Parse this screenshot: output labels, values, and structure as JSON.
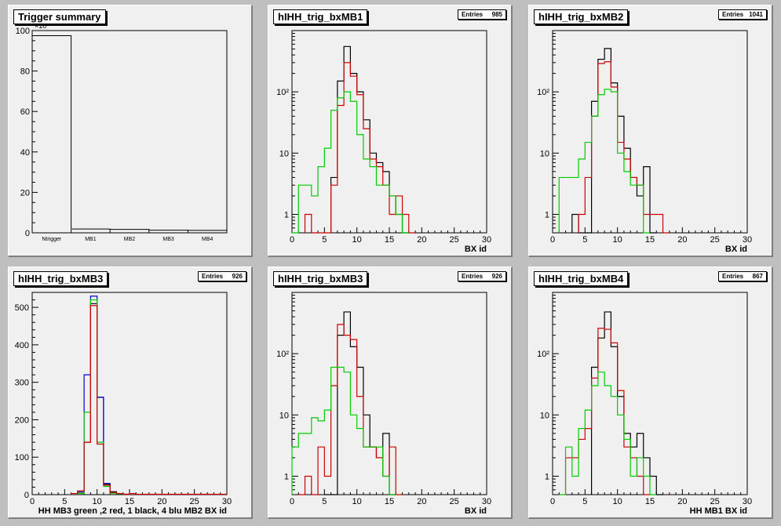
{
  "colors": {
    "black": "#000000",
    "red": "#cc0000",
    "green": "#00cc00",
    "blue": "#0000cc"
  },
  "chart_data": [
    {
      "type": "bar",
      "title": "Trigger summary",
      "exponent_label": "×10",
      "exponent_power": "3",
      "categories": [
        "Ntrigger",
        "MB1",
        "MB2",
        "MB3",
        "MB4"
      ],
      "values": [
        97.5,
        1.9,
        1.7,
        1.3,
        1.2
      ],
      "ylim": [
        0,
        100
      ],
      "yticks": [
        "0",
        "20",
        "40",
        "60",
        "80",
        "100"
      ],
      "ytick_values": [
        0,
        20,
        40,
        60,
        80,
        100
      ]
    },
    {
      "type": "line",
      "title": "hIHH_trig_bxMB1",
      "entries_label": "Entries",
      "entries": "985",
      "log": true,
      "xlabel": "BX id",
      "xlim": [
        0,
        30
      ],
      "xticks": [
        "0",
        "5",
        "10",
        "15",
        "20",
        "25",
        "30"
      ],
      "yticks": [
        "1",
        "10",
        "10²"
      ],
      "ytick_values": [
        1,
        10,
        100
      ],
      "series": [
        {
          "color": "black",
          "points": [
            [
              6,
              4
            ],
            [
              7,
              4
            ],
            [
              7,
              150
            ],
            [
              8,
              550
            ],
            [
              9,
              200
            ],
            [
              10,
              100
            ],
            [
              11,
              35
            ],
            [
              12,
              10
            ],
            [
              13,
              7
            ],
            [
              14,
              5
            ],
            [
              15,
              2
            ],
            [
              16,
              1
            ],
            [
              17,
              0.5
            ]
          ]
        },
        {
          "color": "red",
          "points": [
            [
              2,
              0.5
            ],
            [
              2,
              1
            ],
            [
              3,
              1
            ],
            [
              3,
              0.5
            ],
            [
              6,
              3
            ],
            [
              7,
              60
            ],
            [
              8,
              300
            ],
            [
              9,
              180
            ],
            [
              10,
              90
            ],
            [
              11,
              25
            ],
            [
              12,
              8
            ],
            [
              13,
              6
            ],
            [
              14,
              3
            ],
            [
              15,
              1
            ],
            [
              16,
              2
            ],
            [
              17,
              1
            ],
            [
              18,
              0.5
            ]
          ]
        },
        {
          "color": "green",
          "points": [
            [
              0,
              0.5
            ],
            [
              1,
              3
            ],
            [
              3,
              2
            ],
            [
              4,
              6
            ],
            [
              5,
              12
            ],
            [
              6,
              50
            ],
            [
              7,
              80
            ],
            [
              8,
              100
            ],
            [
              9,
              70
            ],
            [
              10,
              20
            ],
            [
              11,
              8
            ],
            [
              12,
              6
            ],
            [
              13,
              3
            ],
            [
              14,
              3
            ],
            [
              15,
              2
            ],
            [
              16,
              1
            ],
            [
              17,
              0.5
            ]
          ]
        }
      ]
    },
    {
      "type": "line",
      "title": "hIHH_trig_bxMB2",
      "entries_label": "Entries",
      "entries": "1041",
      "log": true,
      "xlabel": "BX id",
      "xlim": [
        0,
        30
      ],
      "xticks": [
        "0",
        "5",
        "10",
        "15",
        "20",
        "25",
        "30"
      ],
      "yticks": [
        "1",
        "10",
        "10²"
      ],
      "ytick_values": [
        1,
        10,
        100
      ],
      "series": [
        {
          "color": "black",
          "points": [
            [
              3,
              1
            ],
            [
              4,
              0.5
            ],
            [
              6,
              70
            ],
            [
              7,
              340
            ],
            [
              8,
              510
            ],
            [
              9,
              140
            ],
            [
              10,
              40
            ],
            [
              11,
              12
            ],
            [
              12,
              4
            ],
            [
              13,
              2
            ],
            [
              14,
              6
            ],
            [
              15,
              0.5
            ]
          ]
        },
        {
          "color": "red",
          "points": [
            [
              4,
              1
            ],
            [
              5,
              4
            ],
            [
              6,
              40
            ],
            [
              7,
              290
            ],
            [
              8,
              310
            ],
            [
              9,
              120
            ],
            [
              10,
              15
            ],
            [
              11,
              8
            ],
            [
              12,
              4
            ],
            [
              13,
              3
            ],
            [
              14,
              1
            ],
            [
              15,
              1
            ],
            [
              16,
              1
            ],
            [
              17,
              0.5
            ]
          ]
        },
        {
          "color": "green",
          "points": [
            [
              1,
              4
            ],
            [
              4,
              8
            ],
            [
              5,
              15
            ],
            [
              6,
              40
            ],
            [
              7,
              90
            ],
            [
              8,
              110
            ],
            [
              9,
              100
            ],
            [
              10,
              10
            ],
            [
              11,
              5
            ],
            [
              12,
              3
            ],
            [
              13,
              3
            ],
            [
              14,
              0.5
            ]
          ]
        }
      ]
    },
    {
      "type": "line",
      "title": "hIHH_trig_bxMB3",
      "entries_label": "Entries",
      "entries": "926",
      "log": false,
      "xlabel": "HH  MB3 green ,2 red, 1 black, 4 blu    MB2 BX id",
      "xlim": [
        0,
        30
      ],
      "xticks": [
        "0",
        "5",
        "10",
        "15",
        "20",
        "25",
        "30"
      ],
      "ylim": [
        0,
        540
      ],
      "yticks": [
        "0",
        "100",
        "200",
        "300",
        "400",
        "500"
      ],
      "ytick_values": [
        0,
        100,
        200,
        300,
        400,
        500
      ],
      "series": [
        {
          "color": "black",
          "points": [
            [
              7,
              4
            ],
            [
              8,
              140
            ],
            [
              9,
              510
            ],
            [
              10,
              260
            ],
            [
              11,
              28
            ],
            [
              12,
              8
            ],
            [
              13,
              3
            ],
            [
              14,
              1
            ]
          ]
        },
        {
          "color": "blue",
          "points": [
            [
              7,
              8
            ],
            [
              8,
              320
            ],
            [
              9,
              530
            ],
            [
              10,
              260
            ],
            [
              11,
              30
            ],
            [
              12,
              6
            ],
            [
              13,
              2
            ]
          ]
        },
        {
          "color": "green",
          "points": [
            [
              7,
              3
            ],
            [
              8,
              220
            ],
            [
              9,
              520
            ],
            [
              10,
              140
            ],
            [
              11,
              22
            ],
            [
              12,
              4
            ],
            [
              13,
              2
            ]
          ]
        },
        {
          "color": "red",
          "points": [
            [
              6,
              3
            ],
            [
              7,
              10
            ],
            [
              8,
              140
            ],
            [
              9,
              505
            ],
            [
              10,
              135
            ],
            [
              11,
              25
            ],
            [
              12,
              6
            ],
            [
              13,
              3
            ],
            [
              14,
              1
            ],
            [
              15,
              3
            ],
            [
              16,
              1
            ],
            [
              29,
              1
            ]
          ]
        }
      ]
    },
    {
      "type": "line",
      "title": "hIHH_trig_bxMB3",
      "entries_label": "Entries",
      "entries": "926",
      "log": true,
      "xlabel": "BX id",
      "xlim": [
        0,
        30
      ],
      "xticks": [
        "0",
        "5",
        "10",
        "15",
        "20",
        "25",
        "30"
      ],
      "yticks": [
        "1",
        "10",
        "10²"
      ],
      "ytick_values": [
        1,
        10,
        100
      ],
      "series": [
        {
          "color": "black",
          "points": [
            [
              5,
              0.5
            ],
            [
              6,
              0.5
            ],
            [
              7,
              200
            ],
            [
              8,
              480
            ],
            [
              9,
              130
            ],
            [
              10,
              60
            ],
            [
              11,
              10
            ],
            [
              12,
              3
            ],
            [
              13,
              2
            ],
            [
              14,
              5
            ],
            [
              15,
              0.5
            ]
          ]
        },
        {
          "color": "red",
          "points": [
            [
              1,
              0.5
            ],
            [
              2,
              1
            ],
            [
              3,
              0.5
            ],
            [
              4,
              3
            ],
            [
              5,
              1
            ],
            [
              6,
              30
            ],
            [
              7,
              300
            ],
            [
              8,
              200
            ],
            [
              9,
              170
            ],
            [
              10,
              20
            ],
            [
              11,
              3
            ],
            [
              12,
              3
            ],
            [
              13,
              2
            ],
            [
              14,
              1
            ],
            [
              15,
              3
            ],
            [
              16,
              0.5
            ]
          ]
        },
        {
          "color": "green",
          "points": [
            [
              0,
              3
            ],
            [
              1,
              5
            ],
            [
              3,
              9
            ],
            [
              4,
              8
            ],
            [
              5,
              12
            ],
            [
              6,
              60
            ],
            [
              7,
              60
            ],
            [
              8,
              50
            ],
            [
              9,
              10
            ],
            [
              10,
              6
            ],
            [
              11,
              3
            ],
            [
              12,
              3
            ],
            [
              13,
              3
            ],
            [
              14,
              1
            ],
            [
              15,
              0.5
            ]
          ]
        }
      ]
    },
    {
      "type": "line",
      "title": "hIHH_trig_bxMB4",
      "entries_label": "Entries",
      "entries": "867",
      "log": true,
      "xlabel": "HH MB1 BX id",
      "xlim": [
        0,
        30
      ],
      "xticks": [
        "0",
        "5",
        "10",
        "15",
        "20",
        "25",
        "30"
      ],
      "yticks": [
        "1",
        "10",
        "10²"
      ],
      "ytick_values": [
        1,
        10,
        100
      ],
      "series": [
        {
          "color": "black",
          "points": [
            [
              6,
              60
            ],
            [
              7,
              180
            ],
            [
              8,
              480
            ],
            [
              9,
              130
            ],
            [
              10,
              20
            ],
            [
              11,
              5
            ],
            [
              12,
              3
            ],
            [
              13,
              5
            ],
            [
              14,
              2
            ],
            [
              15,
              1
            ],
            [
              16,
              0.5
            ]
          ]
        },
        {
          "color": "red",
          "points": [
            [
              2,
              2
            ],
            [
              4,
              4
            ],
            [
              5,
              6
            ],
            [
              6,
              40
            ],
            [
              7,
              260
            ],
            [
              8,
              250
            ],
            [
              9,
              150
            ],
            [
              10,
              25
            ],
            [
              11,
              3
            ],
            [
              12,
              2
            ],
            [
              13,
              1
            ],
            [
              14,
              0.5
            ]
          ]
        },
        {
          "color": "green",
          "points": [
            [
              1,
              0.5
            ],
            [
              2,
              3
            ],
            [
              3,
              1
            ],
            [
              4,
              6
            ],
            [
              5,
              12
            ],
            [
              6,
              30
            ],
            [
              7,
              50
            ],
            [
              8,
              30
            ],
            [
              9,
              20
            ],
            [
              10,
              10
            ],
            [
              11,
              4
            ],
            [
              12,
              1
            ],
            [
              13,
              2
            ],
            [
              14,
              1
            ],
            [
              15,
              0.5
            ]
          ]
        }
      ]
    }
  ]
}
